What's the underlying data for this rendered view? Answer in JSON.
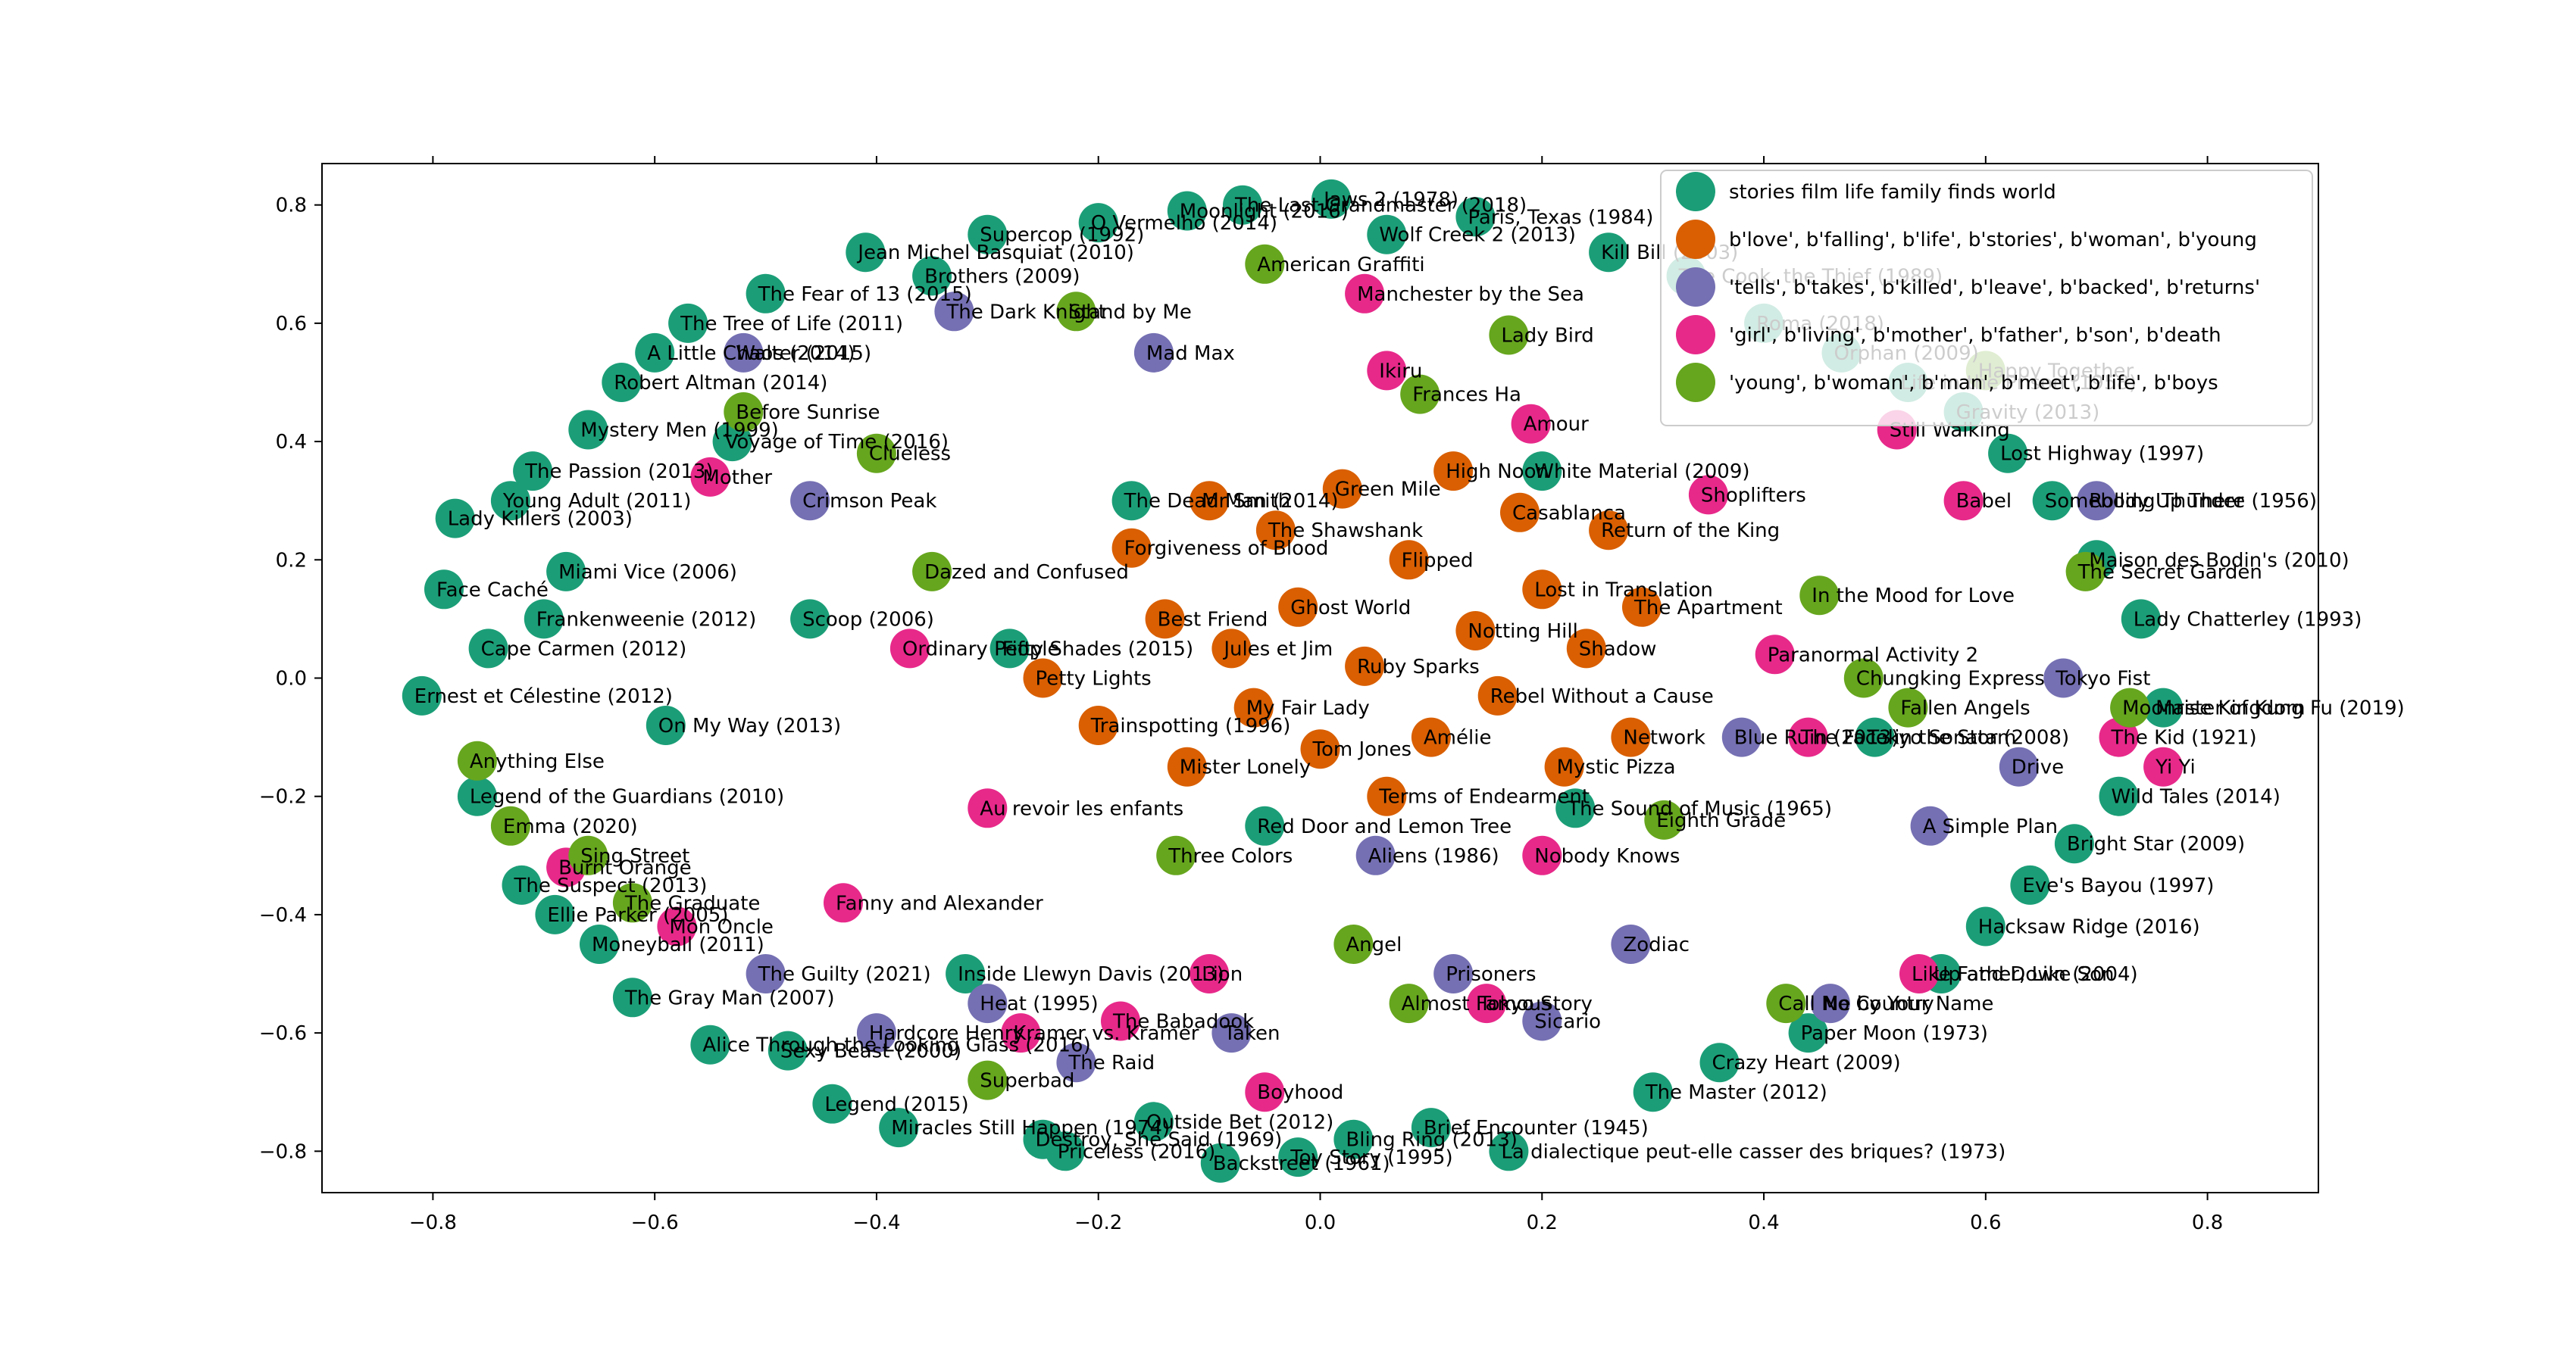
{
  "chart_data": {
    "type": "scatter",
    "title": "",
    "xlabel": "",
    "ylabel": "",
    "xlim": [
      -0.9,
      0.9
    ],
    "ylim": [
      -0.87,
      0.87
    ],
    "xticks": [
      -0.8,
      -0.6,
      -0.4,
      -0.2,
      0.0,
      0.2,
      0.4,
      0.6,
      0.8
    ],
    "xtick_labels": [
      "−0.8",
      "−0.6",
      "−0.4",
      "−0.2",
      "0.0",
      "0.2",
      "0.4",
      "0.6",
      "0.8"
    ],
    "yticks": [
      0.8,
      0.6,
      0.4,
      0.2,
      0.0,
      -0.2,
      -0.4,
      -0.6,
      -0.8
    ],
    "ytick_labels": [
      "0.8",
      "0.6",
      "0.4",
      "0.2",
      "0.0",
      "−0.2",
      "−0.4",
      "−0.6",
      "−0.8"
    ],
    "grid": false,
    "legend_position": "upper-right",
    "series": [
      {
        "name": "stories film life family finds world",
        "color": "#1b9e77",
        "points": [
          {
            "x": -0.81,
            "y": -0.03,
            "label": "Ernest et Célestine (2012)"
          },
          {
            "x": -0.79,
            "y": 0.15,
            "label": "Face Caché"
          },
          {
            "x": -0.78,
            "y": 0.27,
            "label": "Lady Killers (2003)"
          },
          {
            "x": -0.76,
            "y": -0.2,
            "label": "Legend of the Guardians (2010)"
          },
          {
            "x": -0.75,
            "y": 0.05,
            "label": "Cape Carmen (2012)"
          },
          {
            "x": -0.73,
            "y": 0.3,
            "label": "Young Adult (2011)"
          },
          {
            "x": -0.72,
            "y": -0.35,
            "label": "The Suspect (2013)"
          },
          {
            "x": -0.71,
            "y": 0.35,
            "label": "The Passion (2013)"
          },
          {
            "x": -0.7,
            "y": 0.1,
            "label": "Frankenweenie (2012)"
          },
          {
            "x": -0.69,
            "y": -0.4,
            "label": "Ellie Parker (2005)"
          },
          {
            "x": -0.68,
            "y": 0.18,
            "label": "Miami Vice (2006)"
          },
          {
            "x": -0.66,
            "y": 0.42,
            "label": "Mystery Men (1999)"
          },
          {
            "x": -0.65,
            "y": -0.45,
            "label": "Moneyball (2011)"
          },
          {
            "x": -0.63,
            "y": 0.5,
            "label": "Robert Altman (2014)"
          },
          {
            "x": -0.62,
            "y": -0.54,
            "label": "The Gray Man (2007)"
          },
          {
            "x": -0.6,
            "y": 0.55,
            "label": "A Little Chaos (2014)"
          },
          {
            "x": -0.59,
            "y": -0.08,
            "label": "On My Way (2013)"
          },
          {
            "x": -0.57,
            "y": 0.6,
            "label": "The Tree of Life (2011)"
          },
          {
            "x": -0.55,
            "y": -0.62,
            "label": "Alice Through the Looking Glass (2016)"
          },
          {
            "x": -0.53,
            "y": 0.4,
            "label": "Voyage of Time (2016)"
          },
          {
            "x": -0.5,
            "y": 0.65,
            "label": "The Fear of 13 (2015)"
          },
          {
            "x": -0.48,
            "y": -0.63,
            "label": "Sexy Beast (2000)"
          },
          {
            "x": -0.46,
            "y": 0.1,
            "label": "Scoop (2006)"
          },
          {
            "x": -0.44,
            "y": -0.72,
            "label": "Legend (2015)"
          },
          {
            "x": -0.41,
            "y": 0.72,
            "label": "Jean Michel Basquiat (2010)"
          },
          {
            "x": -0.38,
            "y": -0.76,
            "label": "Miracles Still Happen (1974)"
          },
          {
            "x": -0.35,
            "y": 0.68,
            "label": "Brothers (2009)"
          },
          {
            "x": -0.32,
            "y": -0.5,
            "label": "Inside Llewyn Davis (2013)"
          },
          {
            "x": -0.3,
            "y": 0.75,
            "label": "Supercop (1992)"
          },
          {
            "x": -0.28,
            "y": 0.05,
            "label": "Fifty Shades (2015)"
          },
          {
            "x": -0.25,
            "y": -0.78,
            "label": "Destroy, She Said (1969)"
          },
          {
            "x": -0.23,
            "y": -0.8,
            "label": "Priceless (2016)"
          },
          {
            "x": -0.2,
            "y": 0.77,
            "label": "O Vermelho (2014)"
          },
          {
            "x": -0.17,
            "y": 0.3,
            "label": "The Dead Man (2014)"
          },
          {
            "x": -0.15,
            "y": -0.75,
            "label": "Outside Bet (2012)"
          },
          {
            "x": -0.12,
            "y": 0.79,
            "label": "Moonlight (2016)"
          },
          {
            "x": -0.09,
            "y": -0.82,
            "label": "Backstreet (1961)"
          },
          {
            "x": -0.07,
            "y": 0.8,
            "label": "The Last Grandmaster (2018)"
          },
          {
            "x": -0.05,
            "y": -0.25,
            "label": "Red Door and Lemon Tree"
          },
          {
            "x": -0.02,
            "y": -0.81,
            "label": "Toy Story (1995)"
          },
          {
            "x": 0.01,
            "y": 0.81,
            "label": "Jaws 2 (1978)"
          },
          {
            "x": 0.03,
            "y": -0.78,
            "label": "Bling Ring (2013)"
          },
          {
            "x": 0.06,
            "y": 0.75,
            "label": "Wolf Creek 2 (2013)"
          },
          {
            "x": 0.1,
            "y": -0.76,
            "label": "Brief Encounter (1945)"
          },
          {
            "x": 0.14,
            "y": 0.78,
            "label": "Paris, Texas (1984)"
          },
          {
            "x": 0.17,
            "y": -0.8,
            "label": "La dialectique peut-elle casser des briques? (1973)"
          },
          {
            "x": 0.2,
            "y": 0.35,
            "label": "White Material (2009)"
          },
          {
            "x": 0.23,
            "y": -0.22,
            "label": "The Sound of Music (1965)"
          },
          {
            "x": 0.26,
            "y": 0.72,
            "label": "Kill Bill (2003)"
          },
          {
            "x": 0.3,
            "y": -0.7,
            "label": "The Master (2012)"
          },
          {
            "x": 0.33,
            "y": 0.68,
            "label": "The Cook, the Thief (1989)"
          },
          {
            "x": 0.36,
            "y": -0.65,
            "label": "Crazy Heart (2009)"
          },
          {
            "x": 0.4,
            "y": 0.6,
            "label": "Roma (2018)"
          },
          {
            "x": 0.44,
            "y": -0.6,
            "label": "Paper Moon (1973)"
          },
          {
            "x": 0.47,
            "y": 0.55,
            "label": "Orphan (2009)"
          },
          {
            "x": 0.5,
            "y": -0.1,
            "label": "Tokyo Sonata (2008)"
          },
          {
            "x": 0.53,
            "y": 0.5,
            "label": "Life in the Prison (1958)"
          },
          {
            "x": 0.56,
            "y": -0.5,
            "label": "Up and Down (2004)"
          },
          {
            "x": 0.58,
            "y": 0.45,
            "label": "Gravity (2013)"
          },
          {
            "x": 0.6,
            "y": -0.42,
            "label": "Hacksaw Ridge (2016)"
          },
          {
            "x": 0.62,
            "y": 0.38,
            "label": "Lost Highway (1997)"
          },
          {
            "x": 0.64,
            "y": -0.35,
            "label": "Eve's Bayou (1997)"
          },
          {
            "x": 0.66,
            "y": 0.3,
            "label": "Somebody Up There (1956)"
          },
          {
            "x": 0.68,
            "y": -0.28,
            "label": "Bright Star (2009)"
          },
          {
            "x": 0.7,
            "y": 0.2,
            "label": "Maison des Bodin's (2010)"
          },
          {
            "x": 0.72,
            "y": -0.2,
            "label": "Wild Tales (2014)"
          },
          {
            "x": 0.74,
            "y": 0.1,
            "label": "Lady Chatterley (1993)"
          },
          {
            "x": 0.76,
            "y": -0.05,
            "label": "Master of Kung Fu (2019)"
          }
        ]
      },
      {
        "name": "b'love', b'falling', b'life', b'stories', b'woman', b'young",
        "color": "#d95f02",
        "points": [
          {
            "x": -0.25,
            "y": 0.0,
            "label": "Petty Lights"
          },
          {
            "x": -0.2,
            "y": -0.08,
            "label": "Trainspotting (1996)"
          },
          {
            "x": -0.17,
            "y": 0.22,
            "label": "Forgiveness of Blood"
          },
          {
            "x": -0.14,
            "y": 0.1,
            "label": "Best Friend"
          },
          {
            "x": -0.12,
            "y": -0.15,
            "label": "Mister Lonely"
          },
          {
            "x": -0.1,
            "y": 0.3,
            "label": "Mr Smith"
          },
          {
            "x": -0.08,
            "y": 0.05,
            "label": "Jules et Jim"
          },
          {
            "x": -0.06,
            "y": -0.05,
            "label": "My Fair Lady"
          },
          {
            "x": -0.04,
            "y": 0.25,
            "label": "The Shawshank"
          },
          {
            "x": -0.02,
            "y": 0.12,
            "label": "Ghost World"
          },
          {
            "x": 0.0,
            "y": -0.12,
            "label": "Tom Jones"
          },
          {
            "x": 0.02,
            "y": 0.32,
            "label": "Green Mile"
          },
          {
            "x": 0.04,
            "y": 0.02,
            "label": "Ruby Sparks"
          },
          {
            "x": 0.06,
            "y": -0.2,
            "label": "Terms of Endearment"
          },
          {
            "x": 0.08,
            "y": 0.2,
            "label": "Flipped"
          },
          {
            "x": 0.1,
            "y": -0.1,
            "label": "Amélie"
          },
          {
            "x": 0.12,
            "y": 0.35,
            "label": "High Noon"
          },
          {
            "x": 0.14,
            "y": 0.08,
            "label": "Notting Hill"
          },
          {
            "x": 0.16,
            "y": -0.03,
            "label": "Rebel Without a Cause"
          },
          {
            "x": 0.18,
            "y": 0.28,
            "label": "Casablanca"
          },
          {
            "x": 0.2,
            "y": 0.15,
            "label": "Lost in Translation"
          },
          {
            "x": 0.22,
            "y": -0.15,
            "label": "Mystic Pizza"
          },
          {
            "x": 0.24,
            "y": 0.05,
            "label": "Shadow"
          },
          {
            "x": 0.26,
            "y": 0.25,
            "label": "Return of the King"
          },
          {
            "x": 0.28,
            "y": -0.1,
            "label": "Network"
          },
          {
            "x": 0.29,
            "y": 0.12,
            "label": "The Apartment"
          }
        ]
      },
      {
        "name": "'tells', b'takes', b'killed', b'leave', b'backed', b'returns'",
        "color": "#7570b3",
        "points": [
          {
            "x": -0.52,
            "y": 0.55,
            "label": "Walter (2015)"
          },
          {
            "x": -0.5,
            "y": -0.5,
            "label": "The Guilty (2021)"
          },
          {
            "x": -0.46,
            "y": 0.3,
            "label": "Crimson Peak"
          },
          {
            "x": -0.4,
            "y": -0.6,
            "label": "Hardcore Henry"
          },
          {
            "x": -0.33,
            "y": 0.62,
            "label": "The Dark Knight"
          },
          {
            "x": -0.3,
            "y": -0.55,
            "label": "Heat (1995)"
          },
          {
            "x": -0.22,
            "y": -0.65,
            "label": "The Raid"
          },
          {
            "x": -0.15,
            "y": 0.55,
            "label": "Mad Max"
          },
          {
            "x": -0.08,
            "y": -0.6,
            "label": "Taken"
          },
          {
            "x": 0.05,
            "y": -0.3,
            "label": "Aliens (1986)"
          },
          {
            "x": 0.12,
            "y": -0.5,
            "label": "Prisoners"
          },
          {
            "x": 0.2,
            "y": -0.58,
            "label": "Sicario"
          },
          {
            "x": 0.28,
            "y": -0.45,
            "label": "Zodiac"
          },
          {
            "x": 0.38,
            "y": -0.1,
            "label": "Blue Ruin (2013)"
          },
          {
            "x": 0.46,
            "y": -0.55,
            "label": "No Country"
          },
          {
            "x": 0.55,
            "y": -0.25,
            "label": "A Simple Plan"
          },
          {
            "x": 0.63,
            "y": -0.15,
            "label": "Drive"
          },
          {
            "x": 0.67,
            "y": 0.0,
            "label": "Tokyo Fist"
          },
          {
            "x": 0.7,
            "y": 0.3,
            "label": "Rolling Thunder"
          }
        ]
      },
      {
        "name": "'girl', b'living', b'mother', b'father', b'son', b'death",
        "color": "#e7298a",
        "points": [
          {
            "x": -0.68,
            "y": -0.32,
            "label": "Burnt Orange"
          },
          {
            "x": -0.58,
            "y": -0.42,
            "label": "Mon Oncle"
          },
          {
            "x": -0.55,
            "y": 0.34,
            "label": "Mother"
          },
          {
            "x": -0.43,
            "y": -0.38,
            "label": "Fanny and Alexander"
          },
          {
            "x": -0.37,
            "y": 0.05,
            "label": "Ordinary People"
          },
          {
            "x": -0.3,
            "y": -0.22,
            "label": "Au revoir les enfants"
          },
          {
            "x": -0.27,
            "y": -0.6,
            "label": "Kramer vs. Kramer"
          },
          {
            "x": -0.18,
            "y": -0.58,
            "label": "The Babadook"
          },
          {
            "x": -0.1,
            "y": -0.5,
            "label": "Lion"
          },
          {
            "x": -0.05,
            "y": -0.7,
            "label": "Boyhood"
          },
          {
            "x": 0.04,
            "y": 0.65,
            "label": "Manchester by the Sea"
          },
          {
            "x": 0.06,
            "y": 0.52,
            "label": "Ikiru"
          },
          {
            "x": 0.15,
            "y": -0.55,
            "label": "Tokyo Story"
          },
          {
            "x": 0.19,
            "y": 0.43,
            "label": "Amour"
          },
          {
            "x": 0.2,
            "y": -0.3,
            "label": "Nobody Knows"
          },
          {
            "x": 0.35,
            "y": 0.31,
            "label": "Shoplifters"
          },
          {
            "x": 0.41,
            "y": 0.04,
            "label": "Paranormal Activity 2"
          },
          {
            "x": 0.44,
            "y": -0.1,
            "label": "The Face in the Storm"
          },
          {
            "x": 0.52,
            "y": 0.42,
            "label": "Still Walking"
          },
          {
            "x": 0.54,
            "y": -0.5,
            "label": "Like Father, Like Son"
          },
          {
            "x": 0.58,
            "y": 0.3,
            "label": "Babel"
          },
          {
            "x": 0.72,
            "y": -0.1,
            "label": "The Kid (1921)"
          },
          {
            "x": 0.76,
            "y": -0.15,
            "label": "Yi Yi"
          }
        ]
      },
      {
        "name": "'young', b'woman', b'man', b'meet', b'life', b'boys",
        "color": "#66a61e",
        "points": [
          {
            "x": -0.76,
            "y": -0.14,
            "label": "Anything Else"
          },
          {
            "x": -0.73,
            "y": -0.25,
            "label": "Emma (2020)"
          },
          {
            "x": -0.66,
            "y": -0.3,
            "label": "Sing Street"
          },
          {
            "x": -0.62,
            "y": -0.38,
            "label": "The Graduate"
          },
          {
            "x": -0.52,
            "y": 0.45,
            "label": "Before Sunrise"
          },
          {
            "x": -0.4,
            "y": 0.38,
            "label": "Clueless"
          },
          {
            "x": -0.35,
            "y": 0.18,
            "label": "Dazed and Confused"
          },
          {
            "x": -0.3,
            "y": -0.68,
            "label": "Superbad"
          },
          {
            "x": -0.22,
            "y": 0.62,
            "label": "Stand by Me"
          },
          {
            "x": -0.13,
            "y": -0.3,
            "label": "Three Colors"
          },
          {
            "x": -0.05,
            "y": 0.7,
            "label": "American Graffiti"
          },
          {
            "x": 0.03,
            "y": -0.45,
            "label": "Angel"
          },
          {
            "x": 0.08,
            "y": -0.55,
            "label": "Almost Famous"
          },
          {
            "x": 0.09,
            "y": 0.48,
            "label": "Frances Ha"
          },
          {
            "x": 0.17,
            "y": 0.58,
            "label": "Lady Bird"
          },
          {
            "x": 0.31,
            "y": -0.24,
            "label": "Eighth Grade"
          },
          {
            "x": 0.42,
            "y": -0.55,
            "label": "Call Me by Your Name"
          },
          {
            "x": 0.45,
            "y": 0.14,
            "label": "In the Mood for Love"
          },
          {
            "x": 0.49,
            "y": 0.0,
            "label": "Chungking Express"
          },
          {
            "x": 0.53,
            "y": -0.05,
            "label": "Fallen Angels"
          },
          {
            "x": 0.6,
            "y": 0.52,
            "label": "Happy Together"
          },
          {
            "x": 0.69,
            "y": 0.18,
            "label": "The Secret Garden"
          },
          {
            "x": 0.73,
            "y": -0.05,
            "label": "Moonrise Kingdom"
          }
        ]
      }
    ]
  }
}
